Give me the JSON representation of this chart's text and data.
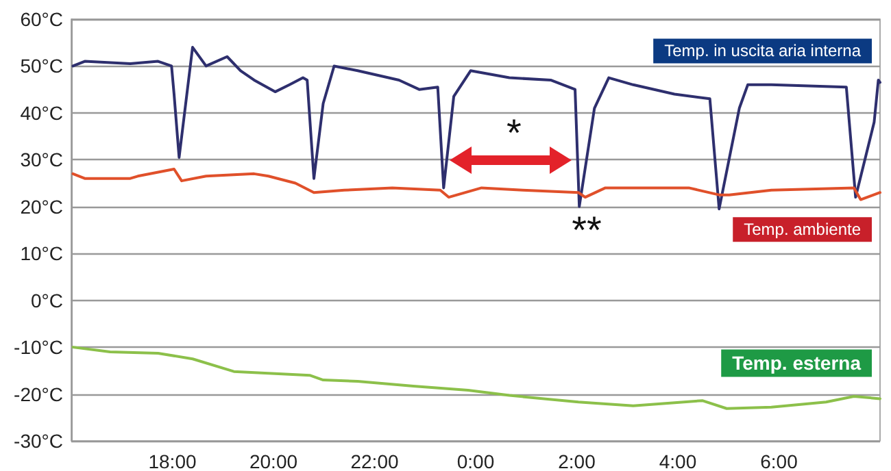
{
  "chart_data": {
    "type": "line",
    "xlim": [
      "--01-01T16:00",
      "--01-02T08:00"
    ],
    "xticks": [
      {
        "value": "--01-01T18:00",
        "label": "18:00"
      },
      {
        "value": "--01-01T20:00",
        "label": "20:00"
      },
      {
        "value": "--01-01T22:00",
        "label": "22:00"
      },
      {
        "value": "--01-02T00:00",
        "label": "0:00"
      },
      {
        "value": "--01-02T02:00",
        "label": "2:00"
      },
      {
        "value": "--01-02T04:00",
        "label": "4:00"
      },
      {
        "value": "--01-02T06:00",
        "label": "6:00"
      }
    ],
    "ylim": [
      -30,
      60
    ],
    "yticks": [
      {
        "value": -30,
        "label": "-30°C"
      },
      {
        "value": -20,
        "label": "-20°C"
      },
      {
        "value": -10,
        "label": "-10°C"
      },
      {
        "value": 0,
        "label": "0°C"
      },
      {
        "value": 10,
        "label": "10°C"
      },
      {
        "value": 20,
        "label": "20°C"
      },
      {
        "value": 30,
        "label": "30°C"
      },
      {
        "value": 40,
        "label": "40°C"
      },
      {
        "value": 50,
        "label": "50°C"
      },
      {
        "value": 60,
        "label": "60°C"
      }
    ],
    "grid": "y",
    "marker": "none",
    "line_style": "solid",
    "series": [
      {
        "name": "Temp. in uscita aria interna",
        "color": "#2e2f6e",
        "x": [
          "--01-01T16:02",
          "--01-01T16:16",
          "--01-01T17:10",
          "--01-01T17:43",
          "--01-01T17:59",
          "--01-01T18:02",
          "--01-01T18:08",
          "--01-01T18:24",
          "--01-01T18:40",
          "--01-01T19:05",
          "--01-01T19:21",
          "--01-01T19:37",
          "--01-01T20:02",
          "--01-01T20:19",
          "--01-01T20:35",
          "--01-01T20:40",
          "--01-01T20:48",
          "--01-01T20:59",
          "--01-01T21:12",
          "--01-01T21:40",
          "--01-01T22:29",
          "--01-01T22:53",
          "--01-01T23:15",
          "--01-01T23:22",
          "--01-01T23:34",
          "--01-01T23:54",
          "--01-02T00:40",
          "--01-02T01:29",
          "--01-02T01:58",
          "--01-02T02:03",
          "--01-02T02:21",
          "--01-02T02:38",
          "--01-02T03:07",
          "--01-02T03:56",
          "--01-02T04:38",
          "--01-02T04:49",
          "--01-02T05:13",
          "--01-02T05:23",
          "--01-02T05:51",
          "--01-02T07:20",
          "--01-02T07:31",
          "--01-02T07:53",
          "--01-02T07:58",
          "--01-02T08:00"
        ],
        "values": [
          50,
          51,
          50.5,
          51,
          50,
          44,
          30.5,
          54,
          50,
          52,
          49,
          47,
          44.5,
          46,
          47.5,
          47,
          26,
          42,
          50,
          49,
          47,
          45,
          45.5,
          24,
          43.5,
          49,
          47.5,
          47,
          45,
          20,
          41,
          47.5,
          46,
          44,
          43,
          19.5,
          41,
          46,
          46,
          45.5,
          22,
          38,
          47,
          46.5
        ]
      },
      {
        "name": "Temp. ambiente",
        "color": "#e0502a",
        "x": [
          "--01-01T16:02",
          "--01-01T16:16",
          "--01-01T17:10",
          "--01-01T17:19",
          "--01-01T18:02",
          "--01-01T18:11",
          "--01-01T18:40",
          "--01-01T19:37",
          "--01-01T19:54",
          "--01-01T20:26",
          "--01-01T20:48",
          "--01-01T21:24",
          "--01-01T22:21",
          "--01-01T23:18",
          "--01-01T23:28",
          "--01-02T00:07",
          "--01-02T00:56",
          "--01-02T02:02",
          "--01-02T02:10",
          "--01-02T02:34",
          "--01-02T04:13",
          "--01-02T04:49",
          "--01-02T05:01",
          "--01-02T05:51",
          "--01-02T07:29",
          "--01-02T07:37",
          "--01-02T08:00"
        ],
        "values": [
          27,
          26,
          26,
          26.5,
          28,
          25.5,
          26.5,
          27,
          26.5,
          25,
          23,
          23.5,
          24,
          23.5,
          22,
          24,
          23.5,
          23,
          22,
          24,
          24,
          22.5,
          22.5,
          23.5,
          24,
          21.5,
          23
        ]
      },
      {
        "name": "Temp. esterna",
        "color": "#8cc04a",
        "x": [
          "--01-01T16:02",
          "--01-01T16:46",
          "--01-01T17:43",
          "--01-01T18:24",
          "--01-01T19:13",
          "--01-01T20:43",
          "--01-01T20:59",
          "--01-01T21:40",
          "--01-01T22:46",
          "--01-01T23:51",
          "--01-02T00:40",
          "--01-02T02:02",
          "--01-02T03:07",
          "--01-02T04:29",
          "--01-02T04:58",
          "--01-02T05:51",
          "--01-02T06:56",
          "--01-02T07:29",
          "--01-02T08:00"
        ],
        "values": [
          -10,
          -11,
          -11.3,
          -12.5,
          -15.2,
          -16,
          -17,
          -17.3,
          -18.3,
          -19.2,
          -20.3,
          -21.7,
          -22.5,
          -21.4,
          -23.1,
          -22.8,
          -21.7,
          -20.5,
          -21
        ]
      }
    ],
    "annotations": [
      "*",
      "**"
    ]
  }
}
